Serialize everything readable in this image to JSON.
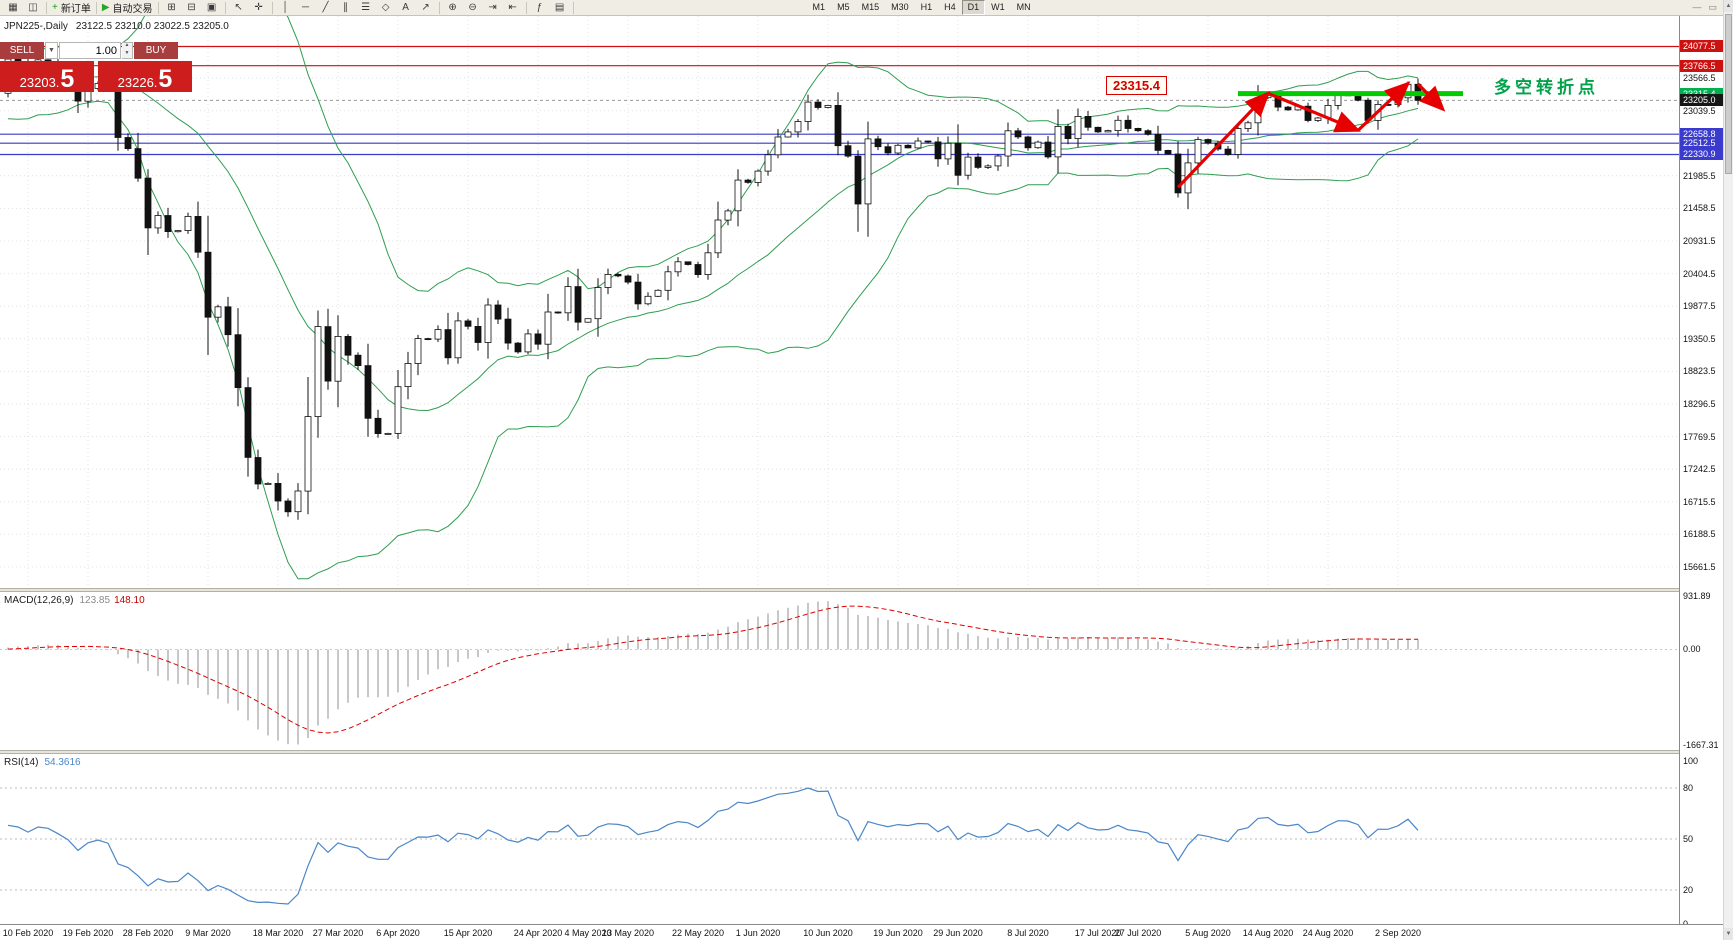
{
  "toolbar": {
    "items": [
      {
        "name": "new-chart-icon",
        "glyph": "▦"
      },
      {
        "name": "chart-profiles-icon",
        "glyph": "◫"
      },
      {
        "name": "sep"
      },
      {
        "name": "new-order-button",
        "glyph": "+",
        "glyph_color": "#1a9c1a",
        "label": "新订单"
      },
      {
        "name": "sep"
      },
      {
        "name": "auto-trading-button",
        "glyph": "▶",
        "glyph_color": "#2aa52a",
        "label": "自动交易"
      },
      {
        "name": "sep"
      },
      {
        "name": "new-window-icon",
        "glyph": "⊞"
      },
      {
        "name": "tile-windows-icon",
        "glyph": "⊟"
      },
      {
        "name": "cascade-windows-icon",
        "glyph": "▣"
      },
      {
        "name": "sep"
      },
      {
        "name": "cursor-icon",
        "glyph": "↖"
      },
      {
        "name": "crosshair-icon",
        "glyph": "✛"
      },
      {
        "name": "sep"
      },
      {
        "name": "vertical-line-icon",
        "glyph": "│"
      },
      {
        "name": "horizontal-line-icon",
        "glyph": "─"
      },
      {
        "name": "trendline-icon",
        "glyph": "╱"
      },
      {
        "name": "channel-icon",
        "glyph": "∥"
      },
      {
        "name": "fibonacci-icon",
        "glyph": "☰"
      },
      {
        "name": "shapes-icon",
        "glyph": "◇"
      },
      {
        "name": "text-icon",
        "glyph": "A"
      },
      {
        "name": "arrow-tool-icon",
        "glyph": "↗"
      },
      {
        "name": "sep"
      },
      {
        "name": "zoom-in-icon",
        "glyph": "⊕"
      },
      {
        "name": "zoom-out-icon",
        "glyph": "⊖"
      },
      {
        "name": "autoscroll-icon",
        "glyph": "⇥"
      },
      {
        "name": "chart-shift-icon",
        "glyph": "⇤"
      },
      {
        "name": "sep"
      },
      {
        "name": "indicators-icon",
        "glyph": "ƒ"
      },
      {
        "name": "templates-icon",
        "glyph": "▤"
      },
      {
        "name": "sep"
      }
    ],
    "timeframes": [
      "M1",
      "M5",
      "M15",
      "M30",
      "H1",
      "H4",
      "D1",
      "W1",
      "MN"
    ],
    "active_timeframe": "D1",
    "window_controls": [
      {
        "name": "minimize-window-icon",
        "glyph": "—"
      },
      {
        "name": "restore-window-icon",
        "glyph": "▭"
      }
    ]
  },
  "scrollbar": {
    "up_glyph": "▲",
    "down_glyph": "▼"
  },
  "chart": {
    "symbol_line": "JPN225-,Daily",
    "ohlc": "23122.5 23210.0 23022.5 23205.0",
    "annotations": {
      "level_label": "23315.4",
      "turning_point": "多空转折点"
    }
  },
  "trade_panel": {
    "sell_label": "SELL",
    "buy_label": "BUY",
    "volume": "1.00",
    "sell_price": "23203.5",
    "buy_price": "23226.5"
  },
  "chart_data": {
    "type": "candlestick",
    "symbol": "JPN225",
    "timeframe": "Daily",
    "ylim": [
      15320,
      24570
    ],
    "price_grid": {
      "start": 23566.5,
      "step": 527,
      "count": 16
    },
    "pre_closes": [
      23320,
      23410,
      23740,
      23850,
      23851,
      23740,
      23917,
      24041,
      23933,
      23817,
      23865,
      23753,
      23344,
      22977,
      23380,
      23290,
      23140,
      22892,
      23205,
      23319,
      23688,
      23827,
      23320,
      23485,
      23380,
      23688,
      23640,
      23560,
      23490,
      23320
    ],
    "closes": [
      23873,
      23827,
      23685,
      23861,
      23827,
      23687,
      23523,
      23193,
      23400,
      23479,
      23386,
      22605,
      22426,
      21948,
      21143,
      21344,
      21083,
      21100,
      21329,
      20750,
      19699,
      19867,
      19416,
      18560,
      17431,
      17002,
      17011,
      16727,
      16553,
      16888,
      18092,
      19547,
      18665,
      19389,
      19085,
      18917,
      18065,
      17818,
      17820,
      18576,
      18950,
      19353,
      19346,
      19499,
      19043,
      19639,
      19551,
      19290,
      19897,
      19669,
      19281,
      19138,
      19429,
      19262,
      19783,
      19771,
      20194,
      19619,
      19675,
      20179,
      20391,
      20366,
      20267,
      19915,
      20037,
      20134,
      20433,
      20595,
      20552,
      20388,
      20741,
      21271,
      21419,
      21916,
      21878,
      22062,
      22326,
      22614,
      22696,
      22864,
      23178,
      23091,
      23125,
      22473,
      22305,
      21531,
      22582,
      22456,
      22355,
      22479,
      22437,
      22549,
      22534,
      22260,
      22512,
      21995,
      22288,
      22122,
      22146,
      22306,
      22714,
      22615,
      22439,
      22530,
      22291,
      22785,
      22587,
      22946,
      22770,
      22696,
      22717,
      22884,
      22752,
      22715,
      22657,
      22397,
      22339,
      21710,
      22195,
      22573,
      22514,
      22418,
      22330,
      22750,
      22843,
      23249,
      23289,
      23096,
      23051,
      23111,
      22880,
      22920,
      23124,
      23296,
      23290,
      23208,
      22882,
      23140,
      23138,
      23247,
      23466,
      23205
    ],
    "date_labels": [
      {
        "i": 2,
        "label": "10 Feb 2020"
      },
      {
        "i": 8,
        "label": "19 Feb 2020"
      },
      {
        "i": 14,
        "label": "28 Feb 2020"
      },
      {
        "i": 20,
        "label": "9 Mar 2020"
      },
      {
        "i": 27,
        "label": "18 Mar 2020"
      },
      {
        "i": 33,
        "label": "27 Mar 2020"
      },
      {
        "i": 39,
        "label": "6 Apr 2020"
      },
      {
        "i": 46,
        "label": "15 Apr 2020"
      },
      {
        "i": 53,
        "label": "24 Apr 2020"
      },
      {
        "i": 58,
        "label": "4 May 2020"
      },
      {
        "i": 62,
        "label": "13 May 2020"
      },
      {
        "i": 69,
        "label": "22 May 2020"
      },
      {
        "i": 75,
        "label": "1 Jun 2020"
      },
      {
        "i": 82,
        "label": "10 Jun 2020"
      },
      {
        "i": 89,
        "label": "19 Jun 2020"
      },
      {
        "i": 95,
        "label": "29 Jun 2020"
      },
      {
        "i": 102,
        "label": "8 Jul 2020"
      },
      {
        "i": 109,
        "label": "17 Jul 2020"
      },
      {
        "i": 113,
        "label": "27 Jul 2020"
      },
      {
        "i": 120,
        "label": "5 Aug 2020"
      },
      {
        "i": 126,
        "label": "14 Aug 2020"
      },
      {
        "i": 132,
        "label": "24 Aug 2020"
      },
      {
        "i": 139,
        "label": "2 Sep 2020"
      }
    ],
    "hlines": [
      {
        "price": 24077.5,
        "color": "#cc1111",
        "label": "24077.5"
      },
      {
        "price": 23766.5,
        "color": "#cc1111",
        "label": "23766.5"
      },
      {
        "price": 22658.8,
        "color": "#3a3acc",
        "label": "22658.8"
      },
      {
        "price": 22512.5,
        "color": "#3a3acc",
        "label": "22512.5"
      },
      {
        "price": 22330.9,
        "color": "#3a3acc",
        "label": "22330.9"
      }
    ],
    "trend_segment": {
      "price": 23315.4,
      "i1": 123,
      "i2": 145.5,
      "color": "#00cc00",
      "label": "23315.4"
    },
    "current_price": {
      "value": 23205.0,
      "label": "23205.0"
    },
    "arrows": [
      {
        "from": [
          117,
          21800
        ],
        "to": [
          126,
          23320
        ]
      },
      {
        "from": [
          126,
          23320
        ],
        "to": [
          135,
          22720
        ]
      },
      {
        "from": [
          135,
          22720
        ],
        "to": [
          140,
          23480
        ]
      },
      {
        "from": [
          141,
          23470
        ],
        "to": [
          143.5,
          23060
        ]
      }
    ],
    "indicators": {
      "bollinger": {
        "period": 20,
        "deviation": 2,
        "color": "#2e9e50"
      },
      "macd": {
        "label": "MACD(12,26,9)",
        "value_main": "123.85",
        "value_signal": "148.10",
        "fast": 12,
        "slow": 26,
        "signal": 9,
        "ylim": [
          -1750,
          1000
        ],
        "axis_labels": [
          {
            "v": 931.89,
            "t": "931.89"
          },
          {
            "v": 0,
            "t": "0.00"
          },
          {
            "v": -1667.31,
            "t": "-1667.31"
          }
        ]
      },
      "rsi": {
        "label": "RSI(14)",
        "value": "54.3616",
        "period": 14,
        "levels": [
          80,
          50,
          20
        ],
        "axis_labels": [
          {
            "v": 100,
            "t": "100"
          },
          {
            "v": 80,
            "t": "80"
          },
          {
            "v": 50,
            "t": "50"
          },
          {
            "v": 20,
            "t": "20"
          },
          {
            "v": 0,
            "t": "0"
          }
        ]
      }
    }
  }
}
